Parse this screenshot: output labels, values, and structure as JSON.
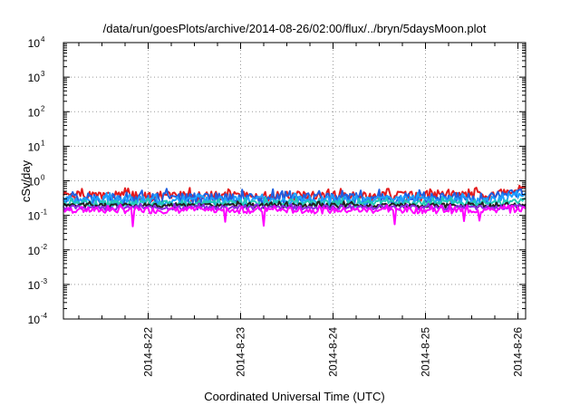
{
  "chart_data": {
    "type": "line",
    "title": "/data/run/goesPlots/archive/2014-08-26/02:00/flux/../bryn/5daysMoon.plot",
    "xlabel": "Coordinated Universal Time (UTC)",
    "ylabel": "cSv/day",
    "y_scale": "log",
    "ylim": [
      0.0001,
      10000
    ],
    "y_ticks": [
      {
        "base": "10",
        "exp": "-4",
        "value": 0.0001
      },
      {
        "base": "10",
        "exp": "-3",
        "value": 0.001
      },
      {
        "base": "10",
        "exp": "-2",
        "value": 0.01
      },
      {
        "base": "10",
        "exp": "-1",
        "value": 0.1
      },
      {
        "base": "10",
        "exp": "0",
        "value": 1
      },
      {
        "base": "10",
        "exp": "1",
        "value": 10
      },
      {
        "base": "10",
        "exp": "2",
        "value": 100
      },
      {
        "base": "10",
        "exp": "3",
        "value": 1000
      },
      {
        "base": "10",
        "exp": "4",
        "value": 10000
      }
    ],
    "xlim": [
      "2014-08-21 02:00",
      "2014-08-26 02:00"
    ],
    "x_ticks": [
      "2014-8-22",
      "2014-8-23",
      "2014-8-24",
      "2014-8-25",
      "2014-8-26"
    ],
    "grid": true,
    "legend": "none",
    "series": [
      {
        "color": "#e41a1c",
        "base": 0.36,
        "amp": 0.12,
        "seed": 1,
        "rise": 0.58
      },
      {
        "color": "#1f5fe0",
        "base": 0.31,
        "amp": 0.12,
        "seed": 2,
        "rise": 0.47
      },
      {
        "color": "#1ea0ff",
        "base": 0.27,
        "amp": 0.08,
        "seed": 3,
        "rise": 0.4
      },
      {
        "color": "#22c9b8",
        "base": 0.22,
        "amp": 0.05,
        "seed": 4,
        "rise": 0.27
      },
      {
        "color": "#222222",
        "base": 0.19,
        "amp": 0.03,
        "seed": 5,
        "rise": 0.2
      },
      {
        "color": "#8a2be2",
        "base": 0.165,
        "amp": 0.025,
        "seed": 6,
        "rise": 0.175
      },
      {
        "color": "#ff00ff",
        "base": 0.14,
        "amp": 0.03,
        "seed": 7,
        "rise": 0.15,
        "dips": [
          {
            "t": "2014-08-21 20:00",
            "v": 0.048
          },
          {
            "t": "2014-08-22 20:00",
            "v": 0.065
          },
          {
            "t": "2014-08-23 06:00",
            "v": 0.05
          },
          {
            "t": "2014-08-24 16:00",
            "v": 0.055
          },
          {
            "t": "2014-08-25 10:00",
            "v": 0.068
          },
          {
            "t": "2014-08-25 14:00",
            "v": 0.07
          }
        ]
      }
    ]
  }
}
